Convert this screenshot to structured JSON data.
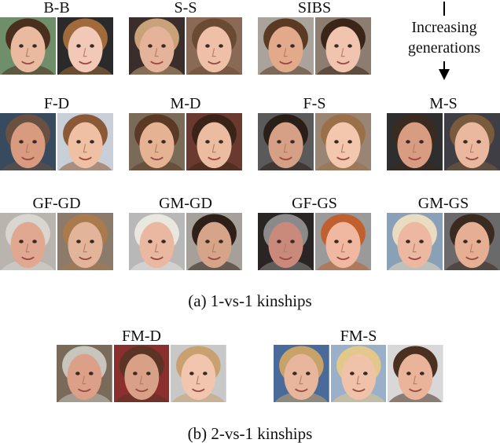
{
  "top_panel": {
    "caption": "(a) 1-vs-1 kinships",
    "generation_note": {
      "line1": "Increasing",
      "line2": "generations"
    },
    "rows": [
      [
        {
          "label": "B-B",
          "faces": [
            {
              "bg": "#6f8f6a",
              "skin": "#e9b9a0",
              "hair": "#4a2f1f"
            },
            {
              "bg": "#2a2a2a",
              "skin": "#f2c8b6",
              "hair": "#a06a3a"
            }
          ]
        },
        {
          "label": "S-S",
          "faces": [
            {
              "bg": "#3a2e2c",
              "skin": "#e5b39a",
              "hair": "#c9a27a"
            },
            {
              "bg": "#8a6a56",
              "skin": "#eec0a8",
              "hair": "#6b4a34"
            }
          ]
        },
        {
          "label": "SIBS",
          "faces": [
            {
              "bg": "#a9a39b",
              "skin": "#e2a98b",
              "hair": "#5a3a22"
            },
            {
              "bg": "#8d7d70",
              "skin": "#f1c4b0",
              "hair": "#3b2418"
            }
          ]
        }
      ],
      [
        {
          "label": "F-D",
          "faces": [
            {
              "bg": "#384a5e",
              "skin": "#d99b80",
              "hair": "#6a5040"
            },
            {
              "bg": "#c9cfd8",
              "skin": "#f0c0a4",
              "hair": "#8a5a38"
            }
          ]
        },
        {
          "label": "M-D",
          "faces": [
            {
              "bg": "#7a6a58",
              "skin": "#e6b294",
              "hair": "#5a3a24"
            },
            {
              "bg": "#6a3a30",
              "skin": "#ecbca0",
              "hair": "#3a2418"
            }
          ]
        },
        {
          "label": "F-S",
          "faces": [
            {
              "bg": "#5a5a5a",
              "skin": "#d5a085",
              "hair": "#2a1e18"
            },
            {
              "bg": "#9a8474",
              "skin": "#f3c6ae",
              "hair": "#9a7048"
            }
          ]
        },
        {
          "label": "M-S",
          "faces": [
            {
              "bg": "#2e2e2e",
              "skin": "#d89c82",
              "hair": "#3a2a20"
            },
            {
              "bg": "#3e3e44",
              "skin": "#eab89e",
              "hair": "#7a5a3c"
            }
          ]
        }
      ],
      [
        {
          "label": "GF-GD",
          "faces": [
            {
              "bg": "#b9b4ad",
              "skin": "#e0a890",
              "hair": "#d9d6d2"
            },
            {
              "bg": "#8c7a6a",
              "skin": "#e2b59a",
              "hair": "#a87a4c"
            }
          ]
        },
        {
          "label": "GM-GD",
          "faces": [
            {
              "bg": "#b8b8b8",
              "skin": "#eab7a0",
              "hair": "#eae6e0"
            },
            {
              "bg": "#a6a09a",
              "skin": "#d6a488",
              "hair": "#2e2018"
            }
          ]
        },
        {
          "label": "GF-GS",
          "faces": [
            {
              "bg": "#2a2424",
              "skin": "#c98a7c",
              "hair": "#8a8a8a"
            },
            {
              "bg": "#9a9a9a",
              "skin": "#f0b8a0",
              "hair": "#c0602e"
            }
          ]
        },
        {
          "label": "GM-GS",
          "faces": [
            {
              "bg": "#8aa0b6",
              "skin": "#ecb8a2",
              "hair": "#eadcc0"
            },
            {
              "bg": "#6a6a6a",
              "skin": "#e6ae92",
              "hair": "#3a2a20"
            }
          ]
        }
      ]
    ]
  },
  "bottom_panel": {
    "caption": "(b) 2-vs-1 kinships",
    "groups": [
      {
        "label": "FM-D",
        "faces": [
          {
            "bg": "#7a6a5a",
            "skin": "#dca088",
            "hair": "#c8c4be"
          },
          {
            "bg": "#8a2e2e",
            "skin": "#d9a088",
            "hair": "#5a3424"
          },
          {
            "bg": "#c8c8c8",
            "skin": "#f2c6ae",
            "hair": "#c9a070"
          }
        ]
      },
      {
        "label": "FM-S",
        "faces": [
          {
            "bg": "#4a6a9a",
            "skin": "#e8b69c",
            "hair": "#c7a36a"
          },
          {
            "bg": "#9ab0c8",
            "skin": "#f0c2aa",
            "hair": "#e2c88a"
          },
          {
            "bg": "#d8d8d8",
            "skin": "#eab49a",
            "hair": "#4a3020"
          }
        ]
      }
    ]
  }
}
